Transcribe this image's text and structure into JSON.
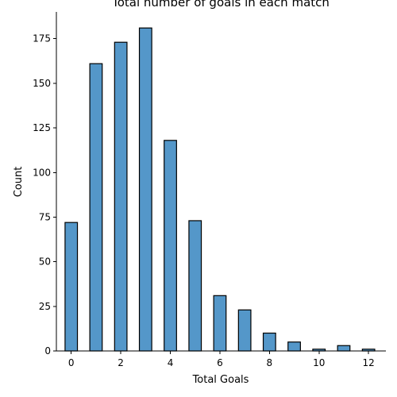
{
  "chart_data": {
    "type": "bar",
    "title": "Total number of goals in each match",
    "xlabel": "Total Goals",
    "ylabel": "Count",
    "categories": [
      0,
      1,
      2,
      3,
      4,
      5,
      6,
      7,
      8,
      9,
      10,
      11,
      12
    ],
    "values": [
      72,
      161,
      173,
      181,
      118,
      73,
      31,
      23,
      10,
      5,
      1,
      3,
      1
    ],
    "xlim": [
      -0.6,
      12.7
    ],
    "ylim": [
      0,
      190
    ],
    "xticks": [
      0,
      2,
      4,
      6,
      8,
      10,
      12
    ],
    "yticks": [
      0,
      25,
      50,
      75,
      100,
      125,
      150,
      175
    ],
    "grid": false,
    "bar_color": "#5497c9",
    "edge_color": "#000000"
  }
}
